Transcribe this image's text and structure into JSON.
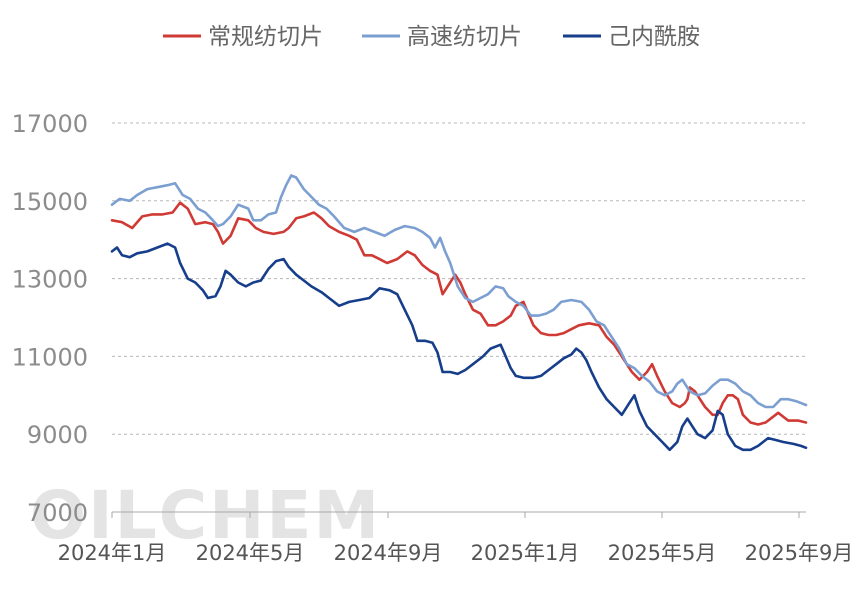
{
  "chart_data": {
    "type": "line",
    "title": "",
    "xlabel": "",
    "ylabel": "",
    "ylim": [
      7000,
      17000
    ],
    "yticks": [
      7000,
      9000,
      11000,
      13000,
      15000,
      17000
    ],
    "grid": true,
    "legend_position": "top",
    "x_start": "2024-01",
    "x_end": "2025-09",
    "xtick_labels": [
      "2024年1月",
      "2024年5月",
      "2024年9月",
      "2025年1月",
      "2025年5月",
      "2025年9月"
    ],
    "watermark": "OILCHEM",
    "series": [
      {
        "name": "常规纺切片",
        "color": "#d03a35",
        "points": [
          [
            0,
            14500
          ],
          [
            4,
            14450
          ],
          [
            8,
            14300
          ],
          [
            12,
            14600
          ],
          [
            16,
            14650
          ],
          [
            20,
            14650
          ],
          [
            24,
            14700
          ],
          [
            27,
            14950
          ],
          [
            30,
            14800
          ],
          [
            33,
            14400
          ],
          [
            37,
            14450
          ],
          [
            40,
            14400
          ],
          [
            42,
            14200
          ],
          [
            44,
            13900
          ],
          [
            47,
            14100
          ],
          [
            50,
            14550
          ],
          [
            54,
            14500
          ],
          [
            57,
            14300
          ],
          [
            60,
            14200
          ],
          [
            64,
            14150
          ],
          [
            68,
            14200
          ],
          [
            70,
            14300
          ],
          [
            73,
            14550
          ],
          [
            76,
            14600
          ],
          [
            80,
            14700
          ],
          [
            83,
            14550
          ],
          [
            86,
            14350
          ],
          [
            90,
            14200
          ],
          [
            94,
            14100
          ],
          [
            97,
            14000
          ],
          [
            100,
            13600
          ],
          [
            103,
            13600
          ],
          [
            106,
            13500
          ],
          [
            109,
            13400
          ],
          [
            113,
            13500
          ],
          [
            117,
            13700
          ],
          [
            120,
            13600
          ],
          [
            123,
            13350
          ],
          [
            126,
            13200
          ],
          [
            129,
            13100
          ],
          [
            131,
            12600
          ],
          [
            133,
            12800
          ],
          [
            136,
            13100
          ],
          [
            138,
            12900
          ],
          [
            140,
            12600
          ],
          [
            143,
            12200
          ],
          [
            146,
            12100
          ],
          [
            149,
            11800
          ],
          [
            152,
            11800
          ],
          [
            155,
            11900
          ],
          [
            158,
            12050
          ],
          [
            160,
            12300
          ],
          [
            163,
            12400
          ],
          [
            165,
            12100
          ],
          [
            167,
            11800
          ],
          [
            170,
            11600
          ],
          [
            173,
            11550
          ],
          [
            176,
            11550
          ],
          [
            179,
            11600
          ],
          [
            182,
            11700
          ],
          [
            185,
            11800
          ],
          [
            189,
            11850
          ],
          [
            193,
            11800
          ],
          [
            196,
            11500
          ],
          [
            199,
            11300
          ],
          [
            203,
            10900
          ],
          [
            206,
            10600
          ],
          [
            209,
            10400
          ],
          [
            212,
            10600
          ],
          [
            214,
            10800
          ],
          [
            216,
            10500
          ],
          [
            219,
            10100
          ],
          [
            222,
            9800
          ],
          [
            225,
            9700
          ],
          [
            227,
            9800
          ],
          [
            228,
            9900
          ],
          [
            229,
            10200
          ],
          [
            231,
            10100
          ],
          [
            233,
            9900
          ],
          [
            235,
            9700
          ],
          [
            238,
            9500
          ],
          [
            240,
            9500
          ],
          [
            242,
            9800
          ],
          [
            244,
            10000
          ],
          [
            246,
            10000
          ],
          [
            248,
            9900
          ],
          [
            250,
            9500
          ],
          [
            253,
            9300
          ],
          [
            256,
            9250
          ],
          [
            259,
            9300
          ],
          [
            262,
            9450
          ],
          [
            264,
            9550
          ],
          [
            268,
            9350
          ],
          [
            272,
            9350
          ],
          [
            275,
            9300
          ]
        ]
      },
      {
        "name": "高速纺切片",
        "color": "#7c9fd1",
        "points": [
          [
            0,
            14900
          ],
          [
            3,
            15050
          ],
          [
            7,
            15000
          ],
          [
            10,
            15150
          ],
          [
            14,
            15300
          ],
          [
            18,
            15350
          ],
          [
            22,
            15400
          ],
          [
            25,
            15450
          ],
          [
            28,
            15150
          ],
          [
            31,
            15050
          ],
          [
            34,
            14800
          ],
          [
            37,
            14700
          ],
          [
            40,
            14500
          ],
          [
            42,
            14350
          ],
          [
            44,
            14400
          ],
          [
            47,
            14600
          ],
          [
            50,
            14900
          ],
          [
            54,
            14800
          ],
          [
            56,
            14500
          ],
          [
            59,
            14500
          ],
          [
            62,
            14650
          ],
          [
            65,
            14700
          ],
          [
            67,
            15100
          ],
          [
            69,
            15400
          ],
          [
            71,
            15650
          ],
          [
            73,
            15600
          ],
          [
            76,
            15300
          ],
          [
            79,
            15100
          ],
          [
            82,
            14900
          ],
          [
            85,
            14800
          ],
          [
            88,
            14600
          ],
          [
            92,
            14300
          ],
          [
            96,
            14200
          ],
          [
            100,
            14300
          ],
          [
            104,
            14200
          ],
          [
            108,
            14100
          ],
          [
            112,
            14250
          ],
          [
            116,
            14350
          ],
          [
            120,
            14300
          ],
          [
            123,
            14200
          ],
          [
            126,
            14050
          ],
          [
            128,
            13800
          ],
          [
            130,
            14050
          ],
          [
            132,
            13700
          ],
          [
            134,
            13400
          ],
          [
            137,
            12800
          ],
          [
            140,
            12500
          ],
          [
            143,
            12400
          ],
          [
            146,
            12500
          ],
          [
            149,
            12600
          ],
          [
            152,
            12800
          ],
          [
            155,
            12750
          ],
          [
            157,
            12550
          ],
          [
            160,
            12400
          ],
          [
            163,
            12300
          ],
          [
            166,
            12050
          ],
          [
            169,
            12050
          ],
          [
            172,
            12100
          ],
          [
            175,
            12200
          ],
          [
            178,
            12400
          ],
          [
            182,
            12450
          ],
          [
            186,
            12400
          ],
          [
            189,
            12200
          ],
          [
            192,
            11900
          ],
          [
            195,
            11800
          ],
          [
            198,
            11500
          ],
          [
            201,
            11200
          ],
          [
            204,
            10800
          ],
          [
            207,
            10700
          ],
          [
            210,
            10500
          ],
          [
            213,
            10350
          ],
          [
            216,
            10100
          ],
          [
            219,
            10000
          ],
          [
            222,
            10100
          ],
          [
            224,
            10300
          ],
          [
            226,
            10400
          ],
          [
            229,
            10100
          ],
          [
            232,
            10000
          ],
          [
            235,
            10050
          ],
          [
            238,
            10250
          ],
          [
            241,
            10400
          ],
          [
            244,
            10400
          ],
          [
            247,
            10300
          ],
          [
            250,
            10100
          ],
          [
            253,
            10000
          ],
          [
            256,
            9800
          ],
          [
            259,
            9700
          ],
          [
            262,
            9700
          ],
          [
            265,
            9900
          ],
          [
            268,
            9900
          ],
          [
            271,
            9850
          ],
          [
            273,
            9800
          ],
          [
            275,
            9750
          ]
        ]
      },
      {
        "name": "己内酰胺",
        "color": "#163e8a",
        "points": [
          [
            0,
            13700
          ],
          [
            2,
            13800
          ],
          [
            4,
            13600
          ],
          [
            7,
            13550
          ],
          [
            10,
            13650
          ],
          [
            14,
            13700
          ],
          [
            18,
            13800
          ],
          [
            22,
            13900
          ],
          [
            25,
            13800
          ],
          [
            27,
            13400
          ],
          [
            30,
            13000
          ],
          [
            33,
            12900
          ],
          [
            36,
            12700
          ],
          [
            38,
            12500
          ],
          [
            41,
            12550
          ],
          [
            43,
            12800
          ],
          [
            45,
            13200
          ],
          [
            47,
            13100
          ],
          [
            50,
            12900
          ],
          [
            53,
            12800
          ],
          [
            56,
            12900
          ],
          [
            59,
            12950
          ],
          [
            62,
            13250
          ],
          [
            65,
            13450
          ],
          [
            68,
            13500
          ],
          [
            70,
            13300
          ],
          [
            73,
            13100
          ],
          [
            76,
            12950
          ],
          [
            79,
            12800
          ],
          [
            83,
            12650
          ],
          [
            86,
            12500
          ],
          [
            90,
            12300
          ],
          [
            94,
            12400
          ],
          [
            98,
            12450
          ],
          [
            102,
            12500
          ],
          [
            106,
            12750
          ],
          [
            110,
            12700
          ],
          [
            113,
            12600
          ],
          [
            116,
            12200
          ],
          [
            119,
            11800
          ],
          [
            121,
            11400
          ],
          [
            124,
            11400
          ],
          [
            127,
            11350
          ],
          [
            129,
            11100
          ],
          [
            131,
            10600
          ],
          [
            134,
            10600
          ],
          [
            137,
            10550
          ],
          [
            140,
            10650
          ],
          [
            143,
            10800
          ],
          [
            147,
            11000
          ],
          [
            150,
            11200
          ],
          [
            154,
            11300
          ],
          [
            156,
            11000
          ],
          [
            158,
            10700
          ],
          [
            160,
            10500
          ],
          [
            163,
            10450
          ],
          [
            167,
            10450
          ],
          [
            170,
            10500
          ],
          [
            173,
            10650
          ],
          [
            176,
            10800
          ],
          [
            179,
            10950
          ],
          [
            182,
            11050
          ],
          [
            184,
            11200
          ],
          [
            186,
            11100
          ],
          [
            188,
            10900
          ],
          [
            190,
            10600
          ],
          [
            193,
            10200
          ],
          [
            196,
            9900
          ],
          [
            199,
            9700
          ],
          [
            202,
            9500
          ],
          [
            205,
            9800
          ],
          [
            207,
            10000
          ],
          [
            209,
            9600
          ],
          [
            212,
            9200
          ],
          [
            215,
            9000
          ],
          [
            218,
            8800
          ],
          [
            221,
            8600
          ],
          [
            224,
            8800
          ],
          [
            226,
            9200
          ],
          [
            228,
            9400
          ],
          [
            230,
            9200
          ],
          [
            232,
            9000
          ],
          [
            235,
            8900
          ],
          [
            238,
            9100
          ],
          [
            240,
            9600
          ],
          [
            242,
            9500
          ],
          [
            244,
            9000
          ],
          [
            247,
            8700
          ],
          [
            250,
            8600
          ],
          [
            253,
            8600
          ],
          [
            256,
            8700
          ],
          [
            258,
            8800
          ],
          [
            260,
            8900
          ],
          [
            263,
            8850
          ],
          [
            266,
            8800
          ],
          [
            270,
            8750
          ],
          [
            273,
            8700
          ],
          [
            275,
            8650
          ]
        ]
      }
    ]
  }
}
